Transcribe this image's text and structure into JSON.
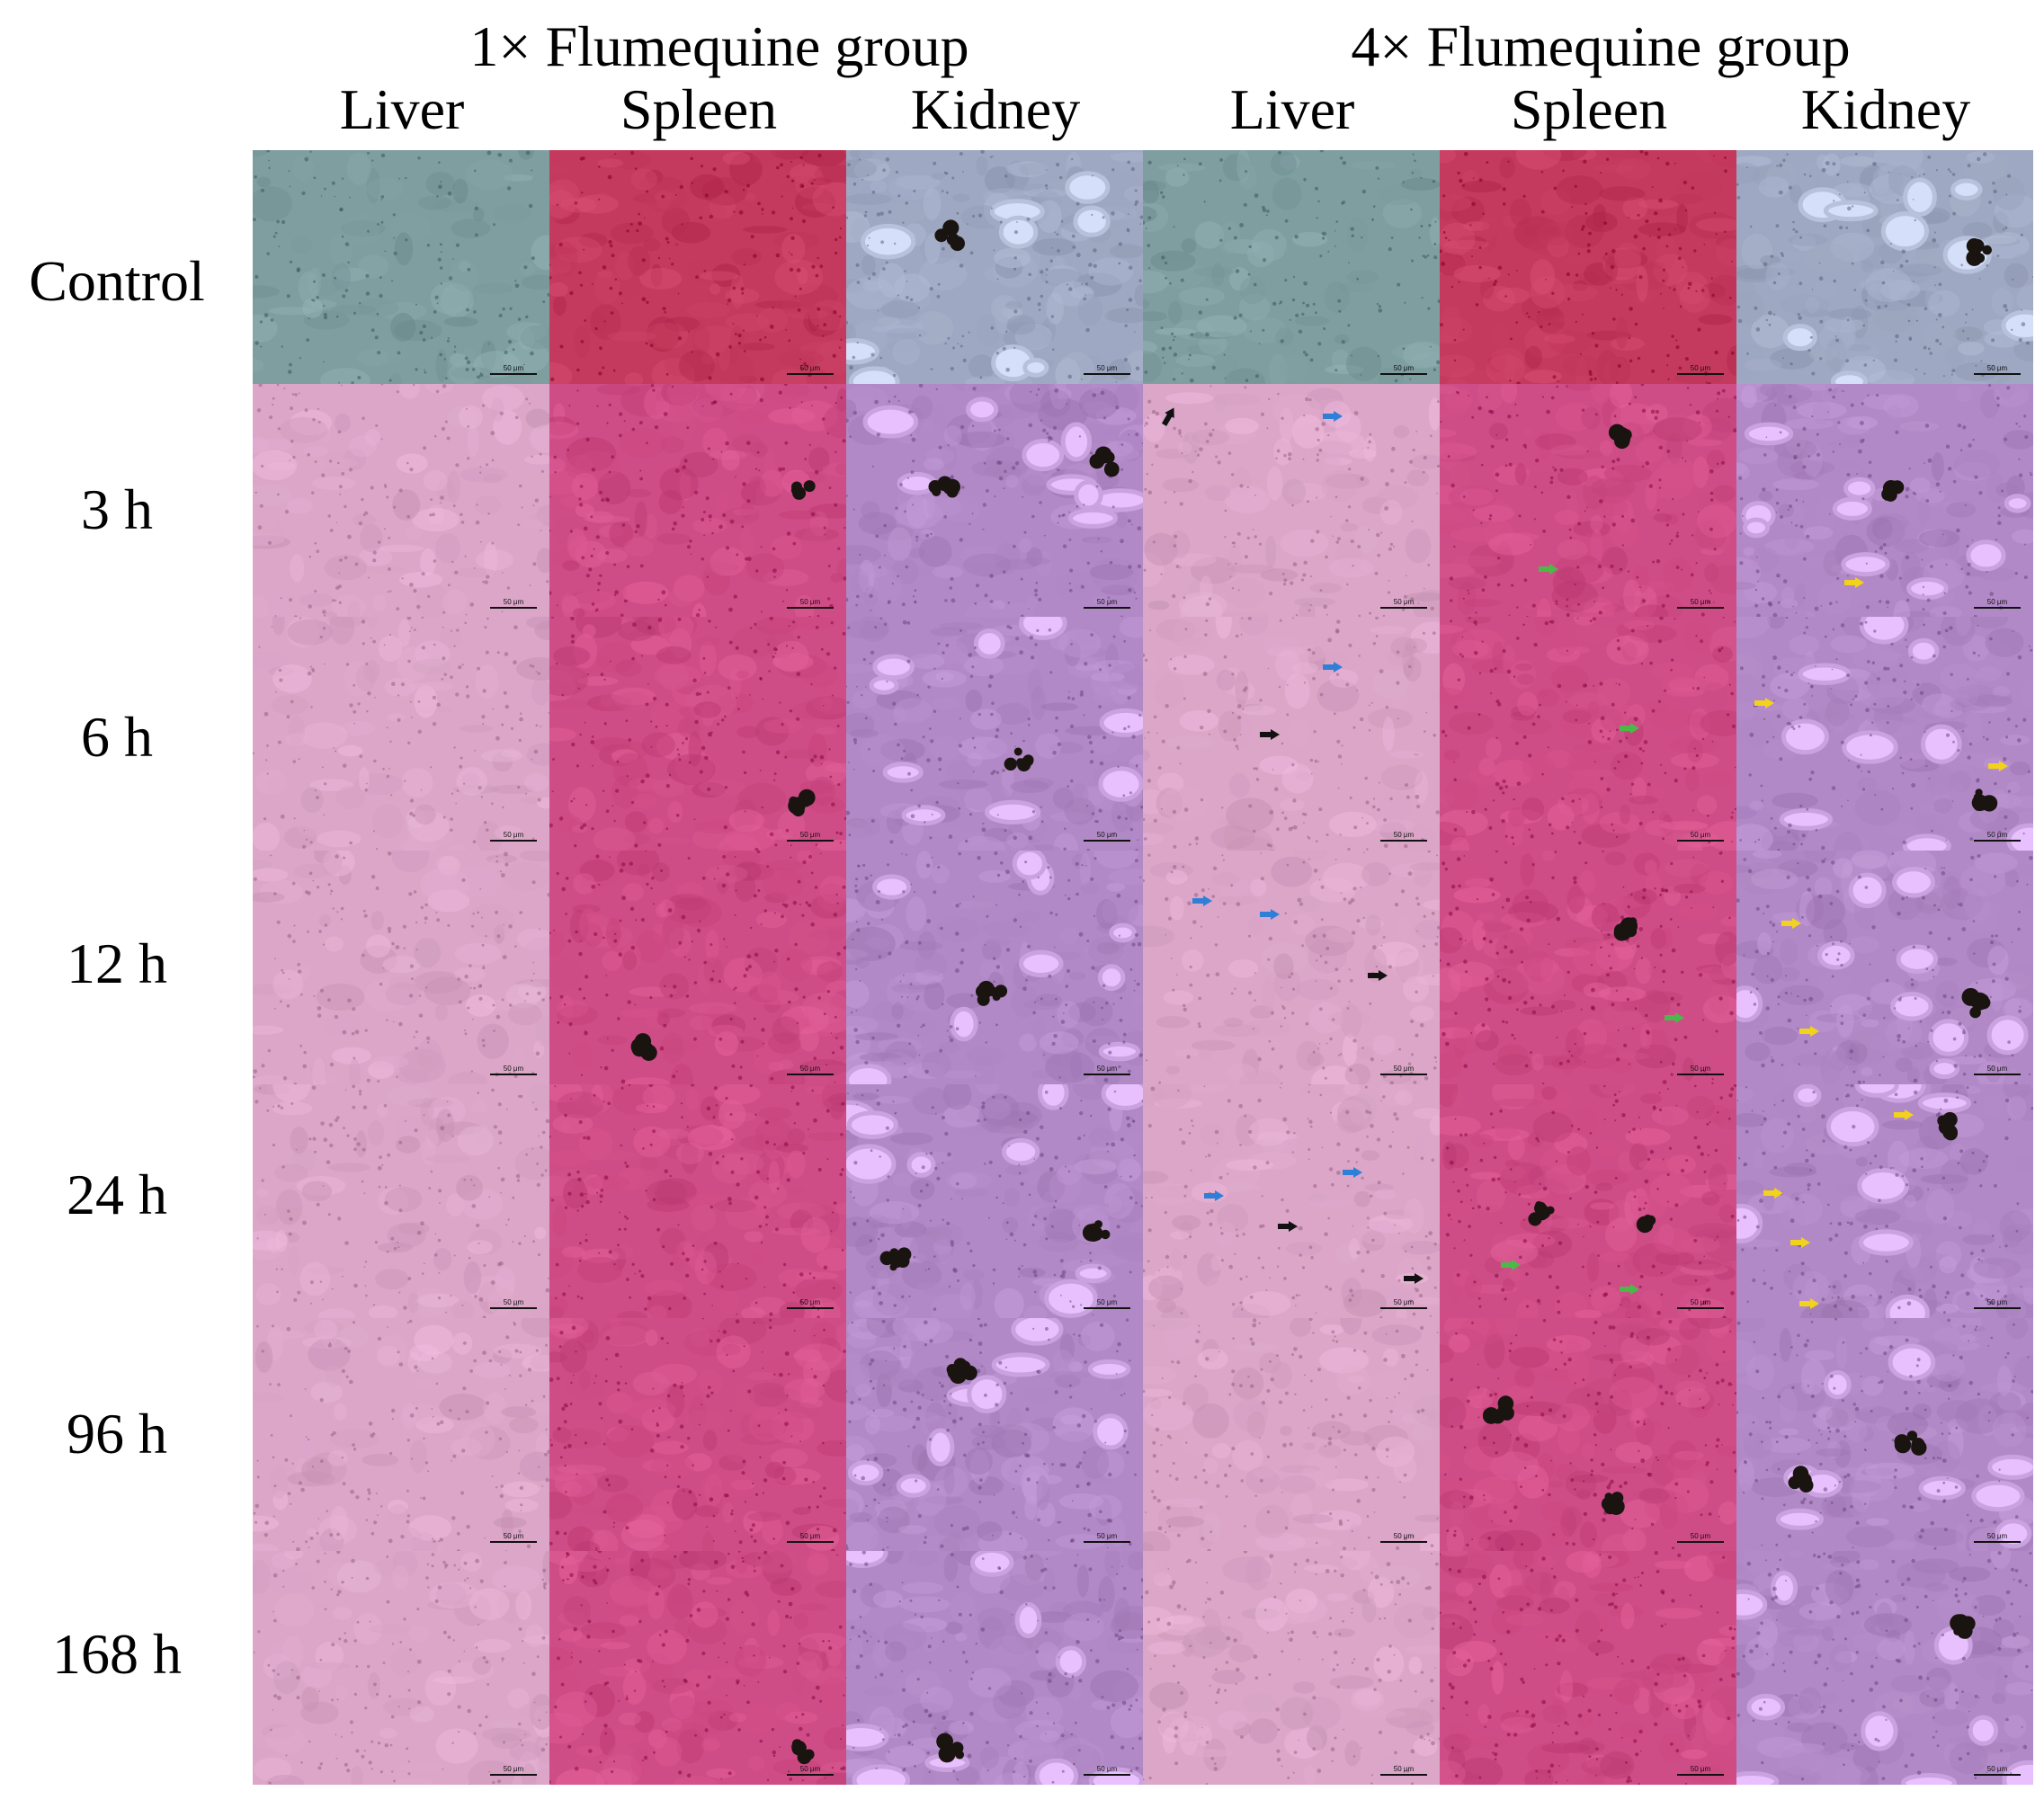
{
  "header": {
    "group_1x": "1× Flumequine group",
    "group_4x": "4× Flumequine group",
    "tissues": [
      "Liver",
      "Spleen",
      "Kidney",
      "Liver",
      "Spleen",
      "Kidney"
    ]
  },
  "rows": [
    "Control",
    "3 h",
    "6 h",
    "12 h",
    "24 h",
    "96 h",
    "168 h"
  ],
  "scale_label": "50 μm",
  "stain_colors": {
    "control": {
      "liver": "#7f9ea0",
      "spleen": "#c43a5e",
      "kidney": "#9fa8c2"
    },
    "he": {
      "liver": "#dba6c8",
      "spleen": "#cf4d86",
      "kidney": "#b189c6"
    }
  },
  "arrow_colors": {
    "black": "#111111",
    "blue": "#2f7fd6",
    "green": "#4cb848",
    "yellow": "#f2d21b"
  }
}
